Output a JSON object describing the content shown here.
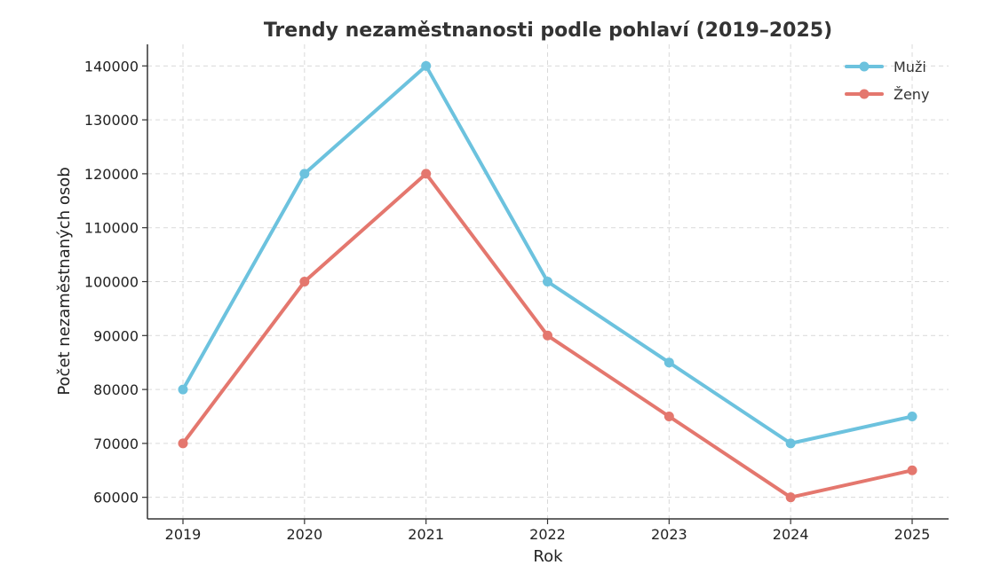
{
  "chart_data": {
    "type": "line",
    "title": "Trendy nezaměstnanosti podle pohlaví (2019–2025)",
    "xlabel": "Rok",
    "ylabel": "Počet nezaměstnaných osob",
    "categories": [
      "2019",
      "2020",
      "2021",
      "2022",
      "2023",
      "2024",
      "2025"
    ],
    "ylim": [
      56000,
      144000
    ],
    "yticks": [
      60000,
      70000,
      80000,
      90000,
      100000,
      110000,
      120000,
      130000,
      140000
    ],
    "yticks_labels": [
      "60000",
      "70000",
      "80000",
      "90000",
      "100000",
      "110000",
      "120000",
      "130000",
      "140000"
    ],
    "grid": true,
    "legend_position": "top-right",
    "series": [
      {
        "name": "Muži",
        "color": "#6cc2de",
        "values": [
          80000,
          120000,
          140000,
          100000,
          85000,
          70000,
          75000
        ]
      },
      {
        "name": "Ženy",
        "color": "#e4776e",
        "values": [
          70000,
          100000,
          120000,
          90000,
          75000,
          60000,
          65000
        ]
      }
    ]
  }
}
